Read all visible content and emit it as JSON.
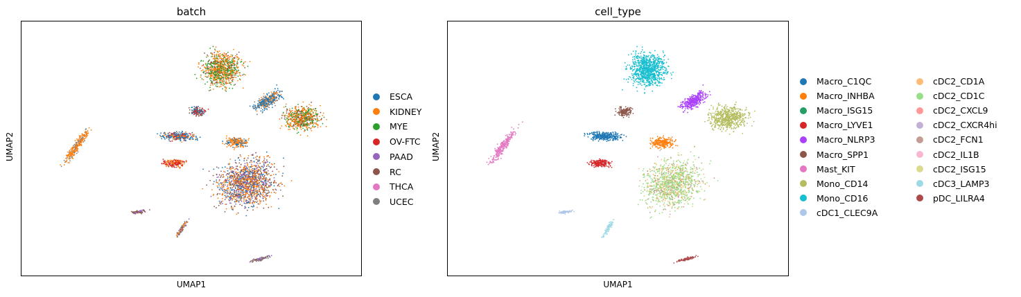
{
  "chart_data": [
    {
      "type": "scatter",
      "title": "batch",
      "xlabel": "UMAP1",
      "ylabel": "UMAP2",
      "legend_placement": "right",
      "series": [
        {
          "name": "ESCA",
          "color": "#1f77b4"
        },
        {
          "name": "KIDNEY",
          "color": "#ff7f0e"
        },
        {
          "name": "MYE",
          "color": "#2ca02c"
        },
        {
          "name": "OV-FTC",
          "color": "#d62728"
        },
        {
          "name": "PAAD",
          "color": "#9467bd"
        },
        {
          "name": "RC",
          "color": "#8c564b"
        },
        {
          "name": "THCA",
          "color": "#e377c2"
        },
        {
          "name": "UCEC",
          "color": "#7f7f7f"
        }
      ]
    },
    {
      "type": "scatter",
      "title": "cell_type",
      "xlabel": "UMAP1",
      "ylabel": "UMAP2",
      "legend_placement": "right",
      "series": [
        {
          "name": "Macro_C1QC",
          "color": "#1f77b4"
        },
        {
          "name": "Macro_INHBA",
          "color": "#ff7f0e"
        },
        {
          "name": "Macro_ISG15",
          "color": "#279e68"
        },
        {
          "name": "Macro_LYVE1",
          "color": "#d62728"
        },
        {
          "name": "Macro_NLRP3",
          "color": "#aa40fc"
        },
        {
          "name": "Macro_SPP1",
          "color": "#8c564b"
        },
        {
          "name": "Mast_KIT",
          "color": "#e377c2"
        },
        {
          "name": "Mono_CD14",
          "color": "#b5bd61"
        },
        {
          "name": "Mono_CD16",
          "color": "#17becf"
        },
        {
          "name": "cDC1_CLEC9A",
          "color": "#aec7e8"
        },
        {
          "name": "cDC2_CD1A",
          "color": "#ffbb78"
        },
        {
          "name": "cDC2_CD1C",
          "color": "#98df8a"
        },
        {
          "name": "cDC2_CXCL9",
          "color": "#ff9896"
        },
        {
          "name": "cDC2_CXCR4hi",
          "color": "#c5b0d5"
        },
        {
          "name": "cDC2_FCN1",
          "color": "#c49c94"
        },
        {
          "name": "cDC2_IL1B",
          "color": "#f7b6d2"
        },
        {
          "name": "cDC2_ISG15",
          "color": "#dbdb8d"
        },
        {
          "name": "cDC3_LAMP3",
          "color": "#9edae5"
        },
        {
          "name": "pDC_LILRA4",
          "color": "#ad494a"
        }
      ]
    }
  ]
}
